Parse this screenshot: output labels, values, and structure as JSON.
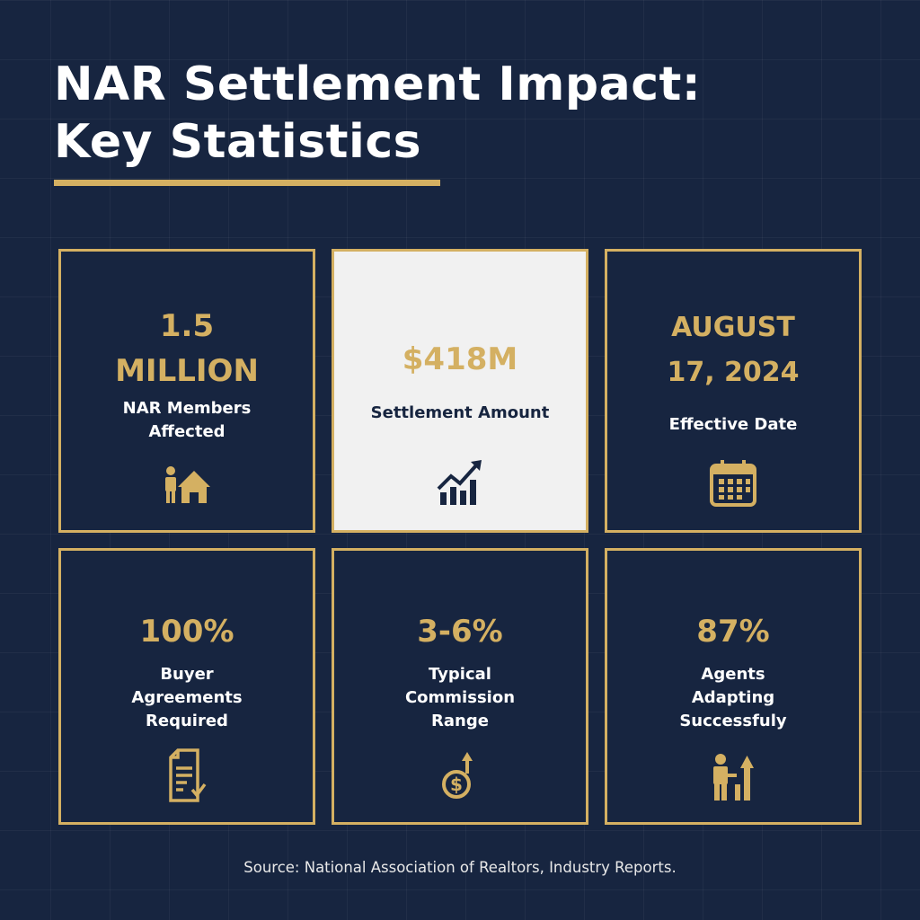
{
  "title": {
    "line1": "NAR Settlement Impact:",
    "line2": "Key Statistics"
  },
  "colors": {
    "background": "#172540",
    "accent": "#d4b062",
    "highlight_card": "#f1f1f1",
    "text": "#ffffff"
  },
  "cards": [
    {
      "value_line1": "1.5",
      "value_line2": "MILLION",
      "label_line1": "NAR Members",
      "label_line2": "Affected",
      "icon": "person-house-icon"
    },
    {
      "value_line1": "$418M",
      "label_line1": "Settlement Amount",
      "icon": "rising-bar-chart-icon",
      "highlighted": true
    },
    {
      "value_line1": "AUGUST",
      "value_line2": "17, 2024",
      "label_line1": "Effective Date",
      "icon": "calendar-icon"
    },
    {
      "value_line1": "100%",
      "label_line1": "Buyer",
      "label_line2": "Agreements",
      "label_line3": "Required",
      "icon": "signed-document-icon"
    },
    {
      "value_line1": "3-6%",
      "label_line1": "Typical",
      "label_line2": "Commission",
      "label_line3": "Range",
      "icon": "dollar-coin-up-icon"
    },
    {
      "value_line1": "87%",
      "label_line1": "Agents",
      "label_line2": "Adapting",
      "label_line3": "Successfuly",
      "icon": "person-growth-icon"
    }
  ],
  "source": "Source: National Association of Realtors, Industry Reports."
}
